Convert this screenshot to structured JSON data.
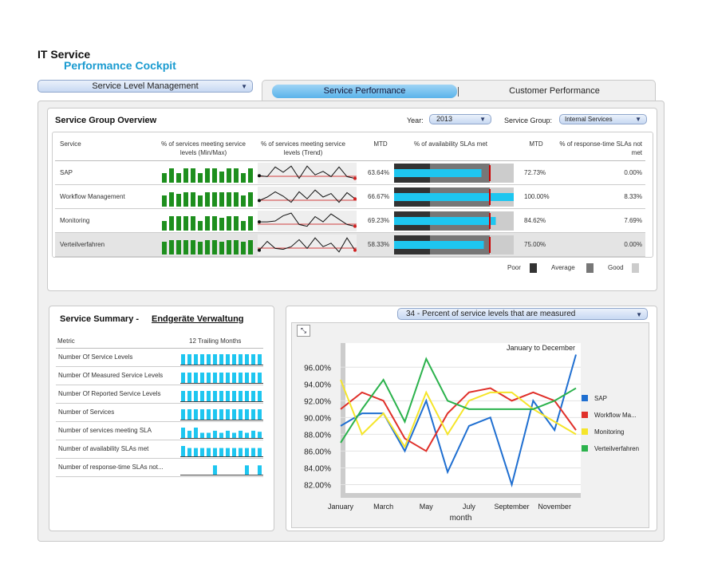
{
  "title_line1": "IT Service",
  "title_line2": "Performance Cockpit",
  "top_dropdown": "Service Level Management",
  "tabs": {
    "active": "Service Performance",
    "inactive": "Customer Performance"
  },
  "overview": {
    "title": "Service Group Overview",
    "year_label": "Year:",
    "year_value": "2013",
    "group_label": "Service Group:",
    "group_value": "Internal Services",
    "headers": {
      "service": "Service",
      "minmax": "% of services meeting service levels (Min/Max)",
      "trend": "% of services meeting service levels (Trend)",
      "mtd1": "MTD",
      "avail": "% of availability SLAs met",
      "mtd2": "MTD",
      "resp": "% of response-time SLAs not met"
    },
    "rows": [
      {
        "name": "SAP",
        "mtd1": "63.64%",
        "mtd2": "72.73%",
        "resp": "0.00%",
        "bar": 0.73,
        "target": 0.8,
        "minmax": [
          0.6,
          0.9,
          0.6,
          0.9,
          0.9,
          0.6,
          0.9,
          0.9,
          0.7,
          0.9,
          0.9,
          0.6,
          0.9
        ],
        "trend": [
          0.35,
          0.3,
          0.85,
          0.55,
          0.9,
          0.2,
          0.9,
          0.4,
          0.6,
          0.3,
          0.85,
          0.3,
          0.2
        ]
      },
      {
        "name": "Workflow Management",
        "mtd1": "66.67%",
        "mtd2": "100.00%",
        "resp": "8.33%",
        "bar": 1.0,
        "target": 0.8,
        "minmax": [
          0.7,
          0.9,
          0.8,
          0.9,
          0.9,
          0.7,
          0.9,
          0.9,
          0.9,
          0.9,
          0.9,
          0.7,
          0.9
        ],
        "trend": [
          0.3,
          0.5,
          0.8,
          0.55,
          0.2,
          0.8,
          0.4,
          0.9,
          0.5,
          0.7,
          0.2,
          0.75,
          0.4
        ]
      },
      {
        "name": "Monitoring",
        "mtd1": "69.23%",
        "mtd2": "84.62%",
        "resp": "7.69%",
        "bar": 0.85,
        "target": 0.8,
        "minmax": [
          0.6,
          0.9,
          0.9,
          0.9,
          0.9,
          0.6,
          0.9,
          0.9,
          0.8,
          0.9,
          0.9,
          0.6,
          0.9
        ],
        "trend": [
          0.45,
          0.45,
          0.5,
          0.8,
          0.95,
          0.3,
          0.2,
          0.75,
          0.45,
          0.9,
          0.6,
          0.3,
          0.2
        ]
      },
      {
        "name": "Verteilverfahren",
        "mtd1": "58.33%",
        "mtd2": "75.00%",
        "resp": "0.00%",
        "bar": 0.75,
        "target": 0.8,
        "minmax": [
          0.8,
          0.9,
          0.9,
          0.9,
          0.9,
          0.8,
          0.9,
          0.9,
          0.8,
          0.9,
          0.9,
          0.8,
          0.9
        ],
        "trend": [
          0.2,
          0.7,
          0.3,
          0.25,
          0.4,
          0.8,
          0.3,
          0.9,
          0.4,
          0.6,
          0.1,
          0.9,
          0.2
        ]
      }
    ],
    "legend": {
      "poor": "Poor",
      "average": "Average",
      "good": "Good"
    }
  },
  "summary": {
    "title": "Service Summary -",
    "link": "Endgeräte Verwaltung",
    "col_metric": "Metric",
    "col_months": "12 Trailing Months",
    "rows": [
      {
        "label": "Number Of Service Levels",
        "bars": [
          1,
          1,
          1,
          1,
          1,
          1,
          1,
          1,
          1,
          1,
          1,
          1,
          1
        ]
      },
      {
        "label": "Number Of Measured Service Levels",
        "bars": [
          1,
          1,
          1,
          1,
          1,
          1,
          1,
          1,
          1,
          1,
          1,
          1,
          1
        ]
      },
      {
        "label": "Number Of Reported Service Levels",
        "bars": [
          1,
          1,
          1,
          1,
          1,
          1,
          1,
          1,
          1,
          1,
          1,
          1,
          1
        ]
      },
      {
        "label": "Number of Services",
        "bars": [
          1,
          1,
          1,
          1,
          1,
          1,
          1,
          1,
          1,
          1,
          1,
          1,
          1
        ]
      },
      {
        "label": "Number of services meeting SLA",
        "bars": [
          1,
          0.7,
          1,
          0.5,
          0.5,
          0.7,
          0.5,
          0.7,
          0.5,
          0.7,
          0.5,
          0.7,
          0.6
        ]
      },
      {
        "label": "Number of availability SLAs met",
        "bars": [
          1,
          0.8,
          0.8,
          0.8,
          0.8,
          0.8,
          0.8,
          0.8,
          0.8,
          0.8,
          0.8,
          0.8,
          0.8
        ]
      },
      {
        "label": "Number of response-time SLAs not...",
        "bars": [
          0,
          0,
          0,
          0,
          0,
          0.9,
          0,
          0,
          0,
          0,
          0.9,
          0,
          0.9
        ]
      }
    ]
  },
  "chart_dropdown": "34 - Percent of service levels that are measured",
  "chart_data": {
    "type": "line",
    "annotation": "January to December",
    "xlabel": "month",
    "x": [
      "January",
      "February",
      "March",
      "April",
      "May",
      "June",
      "July",
      "August",
      "September",
      "October",
      "November",
      "December"
    ],
    "xticks": [
      "January",
      "March",
      "May",
      "July",
      "September",
      "November"
    ],
    "ylim": [
      81,
      98.5
    ],
    "yticks": [
      "96.00%",
      "94.00%",
      "92.00%",
      "90.00%",
      "88.00%",
      "86.00%",
      "84.00%",
      "82.00%"
    ],
    "ytick_values": [
      96,
      94,
      92,
      90,
      88,
      86,
      84,
      82
    ],
    "series": [
      {
        "name": "SAP",
        "color": "#1f6fd1",
        "values": [
          89,
          90.5,
          90.5,
          86,
          92,
          83.5,
          89,
          90,
          82,
          92,
          88.5,
          97.5
        ]
      },
      {
        "name": "Workflow Ma...",
        "color": "#e0302a",
        "values": [
          91,
          93,
          92,
          87.5,
          86,
          90.5,
          93,
          93.5,
          92,
          93,
          92,
          88.5
        ]
      },
      {
        "name": "Monitoring",
        "color": "#f5e52a",
        "values": [
          94.5,
          88,
          90.5,
          86.5,
          93,
          88,
          92,
          93,
          93,
          91,
          89.5,
          88
        ]
      },
      {
        "name": "Verteilverfahren",
        "color": "#2bb24c",
        "values": [
          87,
          91,
          94.5,
          89.5,
          97,
          92,
          91,
          91,
          91,
          91,
          92,
          93.5
        ]
      }
    ]
  },
  "colors": {
    "accent": "#1a9bd0",
    "bar_green": "#1e8f1e",
    "bullet_cyan": "#1ec6f0"
  }
}
